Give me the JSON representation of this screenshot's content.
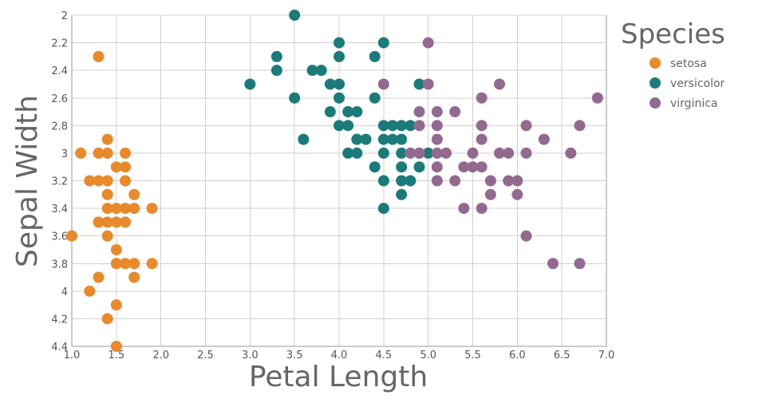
{
  "chart_data": {
    "type": "scatter",
    "xlabel": "Petal Length",
    "ylabel": "Sepal Width",
    "xlim": [
      1.0,
      7.0
    ],
    "ylim": [
      2.0,
      4.4
    ],
    "y_axis_inverted": true,
    "x_ticks": [
      "1.0",
      "1.5",
      "2.0",
      "2.5",
      "3.0",
      "3.5",
      "4.0",
      "4.5",
      "5.0",
      "5.5",
      "6.0",
      "6.5",
      "7.0"
    ],
    "y_ticks": [
      "2",
      "2.2",
      "2.4",
      "2.6",
      "2.8",
      "3",
      "3.2",
      "3.4",
      "3.6",
      "3.8",
      "4",
      "4.2",
      "4.4"
    ],
    "grid": true,
    "legend": {
      "title": "Species",
      "placement": "right"
    },
    "series": [
      {
        "name": "setosa",
        "color": "#E8892A",
        "points": [
          [
            1.3,
            2.3
          ],
          [
            1.1,
            3.0
          ],
          [
            1.3,
            3.0
          ],
          [
            1.4,
            3.0
          ],
          [
            1.6,
            3.0
          ],
          [
            1.4,
            2.9
          ],
          [
            1.2,
            3.2
          ],
          [
            1.3,
            3.2
          ],
          [
            1.4,
            3.2
          ],
          [
            1.5,
            3.1
          ],
          [
            1.6,
            3.1
          ],
          [
            1.6,
            3.2
          ],
          [
            1.4,
            3.3
          ],
          [
            1.7,
            3.3
          ],
          [
            1.3,
            3.5
          ],
          [
            1.4,
            3.4
          ],
          [
            1.5,
            3.4
          ],
          [
            1.6,
            3.4
          ],
          [
            1.7,
            3.4
          ],
          [
            1.9,
            3.4
          ],
          [
            1.4,
            3.5
          ],
          [
            1.5,
            3.5
          ],
          [
            1.6,
            3.5
          ],
          [
            1.0,
            3.6
          ],
          [
            1.4,
            3.6
          ],
          [
            1.5,
            3.7
          ],
          [
            1.5,
            3.8
          ],
          [
            1.6,
            3.8
          ],
          [
            1.7,
            3.8
          ],
          [
            1.9,
            3.8
          ],
          [
            1.3,
            3.9
          ],
          [
            1.7,
            3.9
          ],
          [
            1.2,
            4.0
          ],
          [
            1.5,
            4.1
          ],
          [
            1.4,
            4.2
          ],
          [
            1.5,
            4.4
          ]
        ]
      },
      {
        "name": "versicolor",
        "color": "#1B7B7B",
        "points": [
          [
            3.5,
            2.0
          ],
          [
            4.0,
            2.2
          ],
          [
            4.5,
            2.2
          ],
          [
            3.3,
            2.3
          ],
          [
            4.0,
            2.3
          ],
          [
            4.4,
            2.3
          ],
          [
            3.3,
            2.4
          ],
          [
            3.7,
            2.4
          ],
          [
            3.8,
            2.4
          ],
          [
            3.0,
            2.5
          ],
          [
            3.9,
            2.5
          ],
          [
            4.0,
            2.5
          ],
          [
            4.9,
            2.5
          ],
          [
            3.5,
            2.6
          ],
          [
            4.0,
            2.6
          ],
          [
            4.4,
            2.6
          ],
          [
            3.9,
            2.7
          ],
          [
            4.1,
            2.7
          ],
          [
            4.2,
            2.7
          ],
          [
            4.0,
            2.8
          ],
          [
            4.1,
            2.8
          ],
          [
            4.5,
            2.8
          ],
          [
            4.6,
            2.8
          ],
          [
            4.7,
            2.8
          ],
          [
            4.8,
            2.8
          ],
          [
            3.6,
            2.9
          ],
          [
            4.2,
            2.9
          ],
          [
            4.3,
            2.9
          ],
          [
            4.5,
            2.9
          ],
          [
            4.6,
            2.9
          ],
          [
            4.7,
            2.9
          ],
          [
            4.1,
            3.0
          ],
          [
            4.2,
            3.0
          ],
          [
            4.5,
            3.0
          ],
          [
            4.7,
            3.0
          ],
          [
            4.9,
            3.0
          ],
          [
            5.0,
            3.0
          ],
          [
            4.4,
            3.1
          ],
          [
            4.7,
            3.1
          ],
          [
            4.9,
            3.1
          ],
          [
            4.5,
            3.2
          ],
          [
            4.7,
            3.2
          ],
          [
            4.8,
            3.2
          ],
          [
            4.7,
            3.3
          ],
          [
            4.5,
            3.4
          ]
        ]
      },
      {
        "name": "virginica",
        "color": "#936A8F",
        "points": [
          [
            5.0,
            2.2
          ],
          [
            4.5,
            2.5
          ],
          [
            5.0,
            2.5
          ],
          [
            5.8,
            2.5
          ],
          [
            5.6,
            2.6
          ],
          [
            6.9,
            2.6
          ],
          [
            4.9,
            2.7
          ],
          [
            5.1,
            2.7
          ],
          [
            5.3,
            2.7
          ],
          [
            4.9,
            2.8
          ],
          [
            5.1,
            2.8
          ],
          [
            5.6,
            2.8
          ],
          [
            6.1,
            2.8
          ],
          [
            6.7,
            2.8
          ],
          [
            5.1,
            2.9
          ],
          [
            5.6,
            2.9
          ],
          [
            6.3,
            2.9
          ],
          [
            4.8,
            3.0
          ],
          [
            4.9,
            3.0
          ],
          [
            5.1,
            3.0
          ],
          [
            5.2,
            3.0
          ],
          [
            5.5,
            3.0
          ],
          [
            5.8,
            3.0
          ],
          [
            5.9,
            3.0
          ],
          [
            6.1,
            3.0
          ],
          [
            6.6,
            3.0
          ],
          [
            5.1,
            3.1
          ],
          [
            5.4,
            3.1
          ],
          [
            5.5,
            3.1
          ],
          [
            5.6,
            3.1
          ],
          [
            5.1,
            3.2
          ],
          [
            5.3,
            3.2
          ],
          [
            5.7,
            3.2
          ],
          [
            5.9,
            3.2
          ],
          [
            6.0,
            3.2
          ],
          [
            5.7,
            3.3
          ],
          [
            6.0,
            3.3
          ],
          [
            5.4,
            3.4
          ],
          [
            5.6,
            3.4
          ],
          [
            6.1,
            3.6
          ],
          [
            6.4,
            3.8
          ],
          [
            6.7,
            3.8
          ]
        ]
      }
    ]
  }
}
